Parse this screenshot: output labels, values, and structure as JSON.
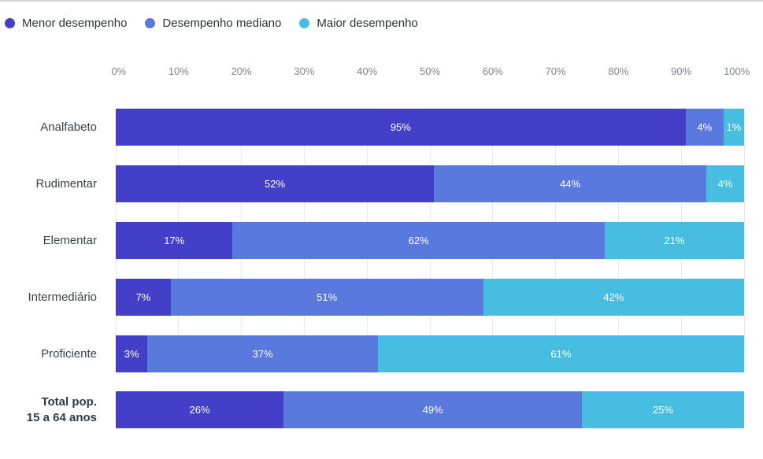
{
  "page": {
    "background": "#FFFFFF",
    "top_border_color": "#D7D7D7"
  },
  "styles": {
    "grid_color": "#E9E9EB",
    "axis_text_color": "#7C838E",
    "category_text_color": "#3B4047",
    "segment_label_color": "#FFFFFF"
  },
  "chart_data": {
    "type": "bar",
    "variant": "horizontal-stacked",
    "unit": "%",
    "xlim": [
      0,
      100
    ],
    "x_ticks": [
      "0%",
      "10%",
      "20%",
      "30%",
      "40%",
      "50%",
      "60%",
      "70%",
      "80%",
      "90%",
      "100%"
    ],
    "grid": "vertical",
    "legend_position": "top-left",
    "categories": [
      {
        "label": "Analfabeto",
        "lines": [
          "Analfabeto"
        ],
        "bold": false
      },
      {
        "label": "Rudimentar",
        "lines": [
          "Rudimentar"
        ],
        "bold": false
      },
      {
        "label": "Elementar",
        "lines": [
          "Elementar"
        ],
        "bold": false
      },
      {
        "label": "Intermediário",
        "lines": [
          "Intermediário"
        ],
        "bold": false
      },
      {
        "label": "Proficiente",
        "lines": [
          "Proficiente"
        ],
        "bold": false
      },
      {
        "label": "Total pop. 15 a 64 anos",
        "lines": [
          "Total pop.",
          "15 a 64 anos"
        ],
        "bold": true
      }
    ],
    "series": [
      {
        "key": "menor-desempenho",
        "name": "Menor desempenho",
        "color": "#433FC8",
        "values": [
          95,
          52,
          17,
          7,
          3,
          26
        ]
      },
      {
        "key": "desempenho-mediano",
        "name": "Desempenho mediano",
        "color": "#5A79DE",
        "values": [
          4,
          44,
          62,
          51,
          37,
          49
        ]
      },
      {
        "key": "maior-desempenho",
        "name": "Maior desempenho",
        "color": "#47BDE2",
        "values": [
          1,
          4,
          21,
          42,
          61,
          25
        ]
      }
    ],
    "value_label_format": "{value}%"
  }
}
